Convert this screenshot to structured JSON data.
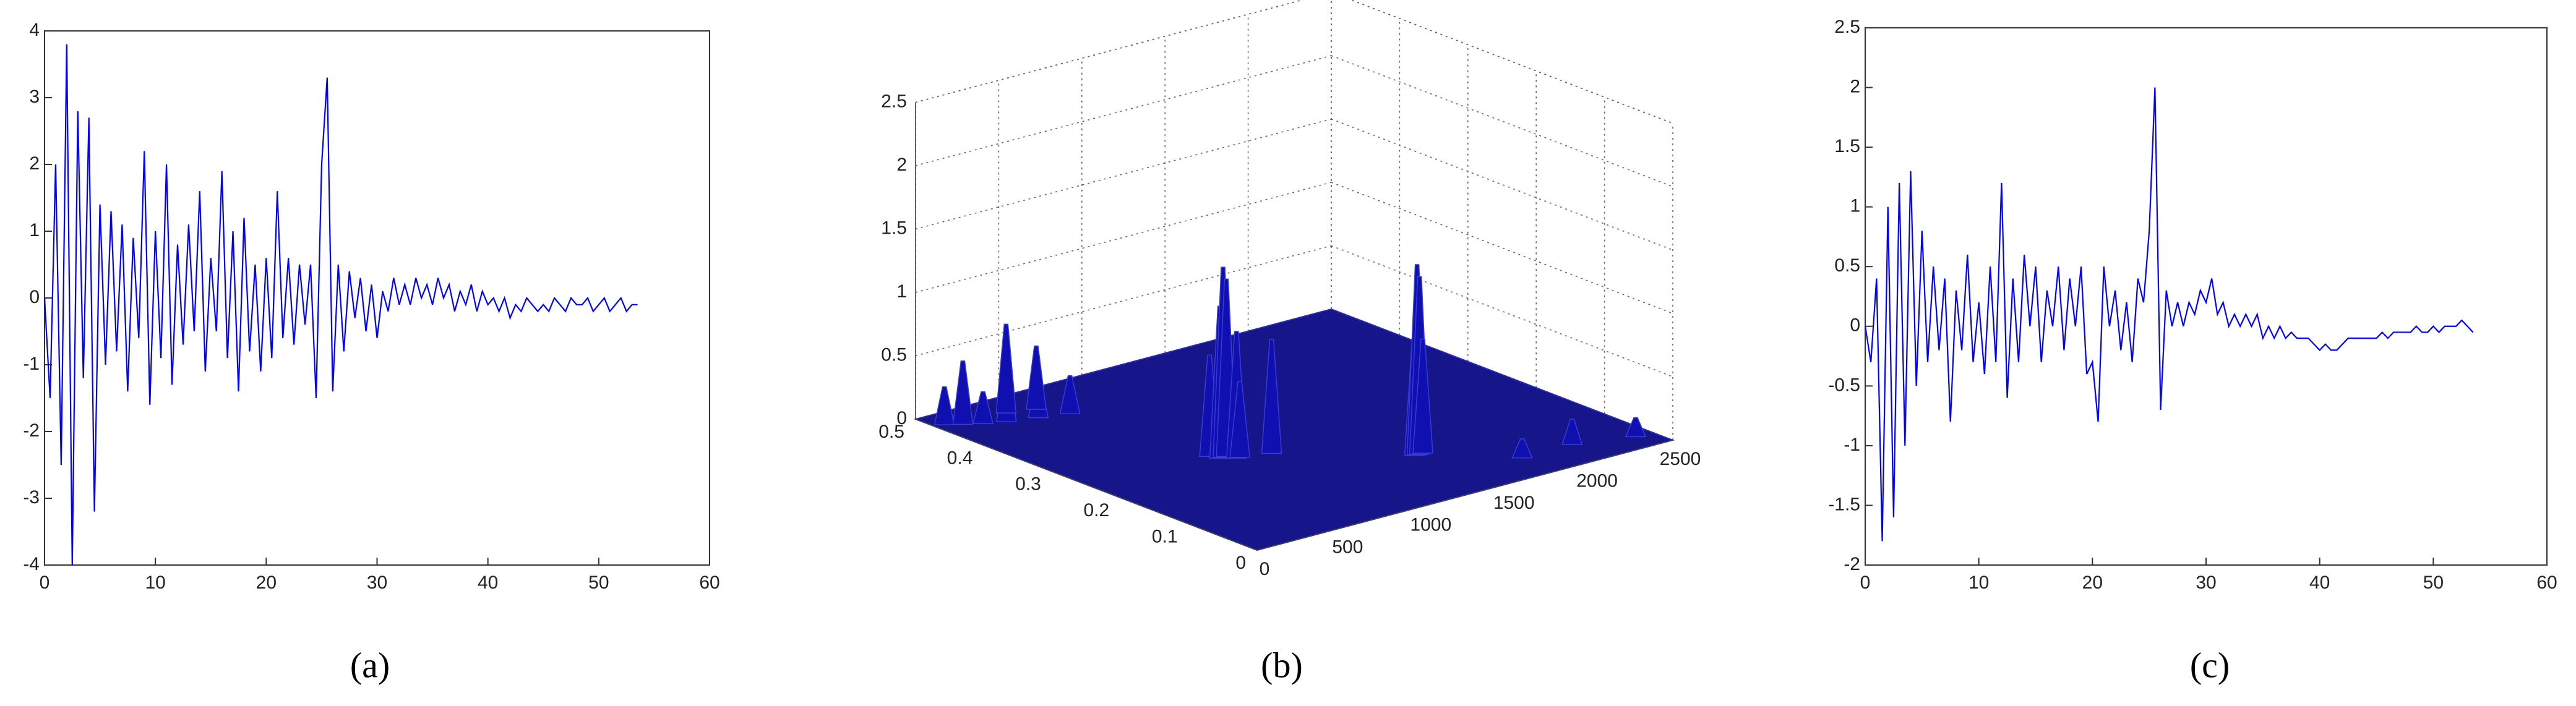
{
  "chart_data": [
    {
      "type": "line",
      "caption": "(a)",
      "color": "#0000ff",
      "x": [
        0,
        0.5,
        1,
        1.5,
        2,
        2.5,
        3,
        3.5,
        4,
        4.5,
        5,
        5.5,
        6,
        6.5,
        7,
        7.5,
        8,
        8.5,
        9,
        9.5,
        10,
        10.5,
        11,
        11.5,
        12,
        12.5,
        13,
        13.5,
        14,
        14.5,
        15,
        15.5,
        16,
        16.5,
        17,
        17.5,
        18,
        18.5,
        19,
        19.5,
        20,
        20.5,
        21,
        21.5,
        22,
        22.5,
        23,
        23.5,
        24,
        24.5,
        25,
        25.5,
        26,
        26.5,
        27,
        27.5,
        28,
        28.5,
        29,
        29.5,
        30,
        30.5,
        31,
        31.5,
        32,
        32.5,
        33,
        33.5,
        34,
        34.5,
        35,
        35.5,
        36,
        36.5,
        37,
        37.5,
        38,
        38.5,
        39,
        39.5,
        40,
        40.5,
        41,
        41.5,
        42,
        42.5,
        43,
        43.5,
        44,
        44.5,
        45,
        45.5,
        46,
        46.5,
        47,
        47.5,
        48,
        48.5,
        49,
        49.5,
        50,
        50.5,
        51,
        51.5,
        52,
        52.5,
        53,
        53.5
      ],
      "values": [
        0,
        -1.5,
        2.0,
        -2.5,
        3.8,
        -4.0,
        2.8,
        -1.2,
        2.7,
        -3.2,
        1.4,
        -1.0,
        1.3,
        -0.8,
        1.1,
        -1.4,
        0.9,
        -0.6,
        2.2,
        -1.6,
        1.0,
        -0.9,
        2.0,
        -1.3,
        0.8,
        -0.7,
        1.1,
        -0.5,
        1.6,
        -1.1,
        0.6,
        -0.5,
        1.9,
        -0.9,
        1.0,
        -1.4,
        1.2,
        -0.8,
        0.5,
        -1.1,
        0.6,
        -0.9,
        1.6,
        -0.6,
        0.6,
        -0.7,
        0.5,
        -0.4,
        0.5,
        -1.5,
        2.0,
        3.3,
        -1.4,
        0.5,
        -0.8,
        0.4,
        -0.3,
        0.3,
        -0.5,
        0.2,
        -0.6,
        0.1,
        -0.2,
        0.3,
        -0.1,
        0.2,
        -0.1,
        0.3,
        0,
        0.2,
        -0.1,
        0.3,
        0,
        0.2,
        -0.2,
        0.1,
        -0.1,
        0.2,
        -0.2,
        0.1,
        -0.1,
        0,
        -0.2,
        0,
        -0.3,
        -0.1,
        -0.2,
        0,
        -0.1,
        -0.2,
        -0.1,
        -0.2,
        0,
        -0.1,
        -0.2,
        0,
        -0.1,
        -0.1,
        0,
        -0.2,
        -0.1,
        0,
        -0.2,
        -0.1,
        0,
        -0.2,
        -0.1,
        -0.1
      ],
      "xlim": [
        0,
        60
      ],
      "xticks": [
        0,
        10,
        20,
        30,
        40,
        50,
        60
      ],
      "ylim": [
        -4,
        4
      ],
      "yticks": [
        -4,
        -3,
        -2,
        -1,
        0,
        1,
        2,
        3,
        4
      ]
    },
    {
      "type": "surface",
      "caption": "(b)",
      "color": "#1010b0",
      "x": [
        50,
        120,
        200,
        300,
        380,
        450,
        520,
        600,
        700,
        720,
        740,
        760,
        780,
        800,
        950,
        1440,
        1455,
        1470,
        1490,
        1800,
        2100,
        2400
      ],
      "y": [
        0.47,
        0.46,
        0.45,
        0.44,
        0.46,
        0.43,
        0.45,
        0.42,
        0.24,
        0.23,
        0.23,
        0.23,
        0.22,
        0.22,
        0.21,
        0.12,
        0.12,
        0.12,
        0.12,
        0.05,
        0.05,
        0.03
      ],
      "z": [
        0.3,
        0.5,
        0.25,
        0.4,
        0.7,
        0.3,
        0.5,
        0.3,
        0.8,
        1.2,
        1.5,
        1.4,
        1.0,
        0.6,
        0.9,
        1.0,
        1.5,
        1.4,
        0.9,
        0.15,
        0.2,
        0.15
      ],
      "xlim": [
        0,
        2500
      ],
      "xticks": [
        0,
        500,
        1000,
        1500,
        2000,
        2500
      ],
      "ylim": [
        0,
        0.5
      ],
      "yticks": [
        0,
        0.1,
        0.2,
        0.3,
        0.4,
        0.5
      ],
      "zlim": [
        0,
        2.5
      ],
      "zticks": [
        0,
        0.5,
        1,
        1.5,
        2,
        2.5
      ]
    },
    {
      "type": "line",
      "caption": "(c)",
      "color": "#0000ff",
      "x": [
        0,
        0.5,
        1,
        1.5,
        2,
        2.5,
        3,
        3.5,
        4,
        4.5,
        5,
        5.5,
        6,
        6.5,
        7,
        7.5,
        8,
        8.5,
        9,
        9.5,
        10,
        10.5,
        11,
        11.5,
        12,
        12.5,
        13,
        13.5,
        14,
        14.5,
        15,
        15.5,
        16,
        16.5,
        17,
        17.5,
        18,
        18.5,
        19,
        19.5,
        20,
        20.5,
        21,
        21.5,
        22,
        22.5,
        23,
        23.5,
        24,
        24.5,
        25,
        25.5,
        26,
        26.5,
        27,
        27.5,
        28,
        28.5,
        29,
        29.5,
        30,
        30.5,
        31,
        31.5,
        32,
        32.5,
        33,
        33.5,
        34,
        34.5,
        35,
        35.5,
        36,
        36.5,
        37,
        37.5,
        38,
        38.5,
        39,
        39.5,
        40,
        40.5,
        41,
        41.5,
        42,
        42.5,
        43,
        43.5,
        44,
        44.5,
        45,
        45.5,
        46,
        46.5,
        47,
        47.5,
        48,
        48.5,
        49,
        49.5,
        50,
        50.5,
        51,
        51.5,
        52,
        52.5,
        53,
        53.5
      ],
      "values": [
        0,
        -0.3,
        0.4,
        -1.8,
        1.0,
        -1.6,
        1.2,
        -1.0,
        1.3,
        -0.5,
        0.8,
        -0.3,
        0.5,
        -0.2,
        0.4,
        -0.8,
        0.3,
        -0.2,
        0.6,
        -0.3,
        0.2,
        -0.4,
        0.5,
        -0.3,
        1.2,
        -0.6,
        0.4,
        -0.3,
        0.6,
        0,
        0.5,
        -0.3,
        0.3,
        0,
        0.5,
        -0.2,
        0.4,
        0,
        0.5,
        -0.4,
        -0.3,
        -0.8,
        0.5,
        0,
        0.3,
        -0.2,
        0.2,
        -0.3,
        0.4,
        0.2,
        0.8,
        2.0,
        -0.7,
        0.3,
        0,
        0.2,
        0,
        0.2,
        0.1,
        0.3,
        0.2,
        0.4,
        0.1,
        0.2,
        0,
        0.1,
        0,
        0.1,
        0,
        0.1,
        -0.1,
        0,
        -0.1,
        0,
        -0.1,
        -0.05,
        -0.1,
        -0.1,
        -0.1,
        -0.15,
        -0.2,
        -0.15,
        -0.2,
        -0.2,
        -0.15,
        -0.1,
        -0.1,
        -0.1,
        -0.1,
        -0.1,
        -0.1,
        -0.05,
        -0.1,
        -0.05,
        -0.05,
        -0.05,
        -0.05,
        0,
        -0.05,
        -0.05,
        0,
        -0.05,
        0,
        0,
        0,
        0.05,
        0,
        -0.05
      ],
      "xlim": [
        0,
        60
      ],
      "xticks": [
        0,
        10,
        20,
        30,
        40,
        50,
        60
      ],
      "ylim": [
        -2,
        2.5
      ],
      "yticks": [
        -2,
        -1.5,
        -1,
        -0.5,
        0,
        0.5,
        1,
        1.5,
        2,
        2.5
      ]
    }
  ]
}
